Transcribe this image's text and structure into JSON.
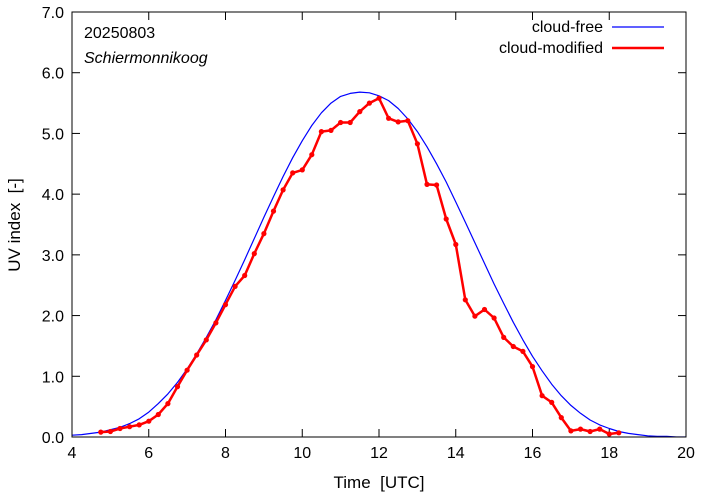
{
  "chart_data": {
    "type": "line",
    "title": "",
    "date_label": "20250803",
    "location_label": "Schiermonnikoog",
    "xlabel": "Time  [UTC]",
    "ylabel": "UV index  [-]",
    "xlim": [
      4,
      20
    ],
    "ylim": [
      0,
      7
    ],
    "x_ticks": [
      {
        "v": 4,
        "label": "4"
      },
      {
        "v": 6,
        "label": "6"
      },
      {
        "v": 8,
        "label": "8"
      },
      {
        "v": 10,
        "label": "10"
      },
      {
        "v": 12,
        "label": "12"
      },
      {
        "v": 14,
        "label": "14"
      },
      {
        "v": 16,
        "label": "16"
      },
      {
        "v": 18,
        "label": "18"
      },
      {
        "v": 20,
        "label": "20"
      }
    ],
    "y_ticks": [
      {
        "v": 0,
        "label": "0.0"
      },
      {
        "v": 1,
        "label": "1.0"
      },
      {
        "v": 2,
        "label": "2.0"
      },
      {
        "v": 3,
        "label": "3.0"
      },
      {
        "v": 4,
        "label": "4.0"
      },
      {
        "v": 5,
        "label": "5.0"
      },
      {
        "v": 6,
        "label": "6.0"
      },
      {
        "v": 7,
        "label": "7.0"
      }
    ],
    "grid": false,
    "legend_position": "top-right",
    "series": [
      {
        "name": "cloud-free",
        "color": "#0000ff",
        "marker": "none",
        "x": [
          4.0,
          4.25,
          4.5,
          4.75,
          5.0,
          5.25,
          5.5,
          5.75,
          6.0,
          6.25,
          6.5,
          6.75,
          7.0,
          7.25,
          7.5,
          7.75,
          8.0,
          8.25,
          8.5,
          8.75,
          9.0,
          9.25,
          9.5,
          9.75,
          10.0,
          10.25,
          10.5,
          10.75,
          11.0,
          11.25,
          11.5,
          11.75,
          12.0,
          12.25,
          12.5,
          12.75,
          13.0,
          13.25,
          13.5,
          13.75,
          14.0,
          14.25,
          14.5,
          14.75,
          15.0,
          15.25,
          15.5,
          15.75,
          16.0,
          16.25,
          16.5,
          16.75,
          17.0,
          17.25,
          17.5,
          17.75,
          18.0,
          18.25,
          18.5,
          18.75,
          19.0,
          19.25,
          19.5,
          19.75,
          20.0
        ],
        "values": [
          0.03,
          0.04,
          0.06,
          0.08,
          0.12,
          0.16,
          0.22,
          0.3,
          0.41,
          0.55,
          0.71,
          0.9,
          1.12,
          1.37,
          1.64,
          1.93,
          2.25,
          2.58,
          2.92,
          3.27,
          3.62,
          3.96,
          4.29,
          4.6,
          4.88,
          5.13,
          5.34,
          5.5,
          5.61,
          5.66,
          5.68,
          5.67,
          5.62,
          5.54,
          5.41,
          5.24,
          5.03,
          4.78,
          4.5,
          4.2,
          3.87,
          3.54,
          3.2,
          2.86,
          2.52,
          2.2,
          1.89,
          1.6,
          1.33,
          1.09,
          0.87,
          0.68,
          0.52,
          0.39,
          0.28,
          0.2,
          0.14,
          0.09,
          0.06,
          0.04,
          0.02,
          0.01,
          0.01,
          0.0,
          0.0
        ]
      },
      {
        "name": "cloud-modified",
        "color": "#ff0000",
        "marker": "circle",
        "x": [
          4.75,
          5.0,
          5.25,
          5.5,
          5.75,
          6.0,
          6.25,
          6.5,
          6.75,
          7.0,
          7.25,
          7.5,
          7.75,
          8.0,
          8.25,
          8.5,
          8.75,
          9.0,
          9.25,
          9.5,
          9.75,
          10.0,
          10.25,
          10.5,
          10.75,
          11.0,
          11.25,
          11.5,
          11.75,
          12.0,
          12.25,
          12.5,
          12.75,
          13.0,
          13.25,
          13.5,
          13.75,
          14.0,
          14.25,
          14.5,
          14.75,
          15.0,
          15.25,
          15.5,
          15.75,
          16.0,
          16.25,
          16.5,
          16.75,
          17.0,
          17.25,
          17.5,
          17.75,
          18.0,
          18.25
        ],
        "values": [
          0.08,
          0.09,
          0.14,
          0.17,
          0.2,
          0.26,
          0.37,
          0.55,
          0.83,
          1.1,
          1.35,
          1.6,
          1.88,
          2.18,
          2.48,
          2.66,
          3.02,
          3.35,
          3.72,
          4.07,
          4.35,
          4.4,
          4.65,
          5.03,
          5.05,
          5.18,
          5.18,
          5.36,
          5.5,
          5.58,
          5.25,
          5.19,
          5.21,
          4.83,
          4.16,
          4.15,
          3.59,
          3.17,
          2.26,
          1.99,
          2.1,
          1.96,
          1.64,
          1.49,
          1.41,
          1.16,
          0.68,
          0.57,
          0.32,
          0.1,
          0.13,
          0.09,
          0.13,
          0.05,
          0.07
        ]
      }
    ]
  }
}
